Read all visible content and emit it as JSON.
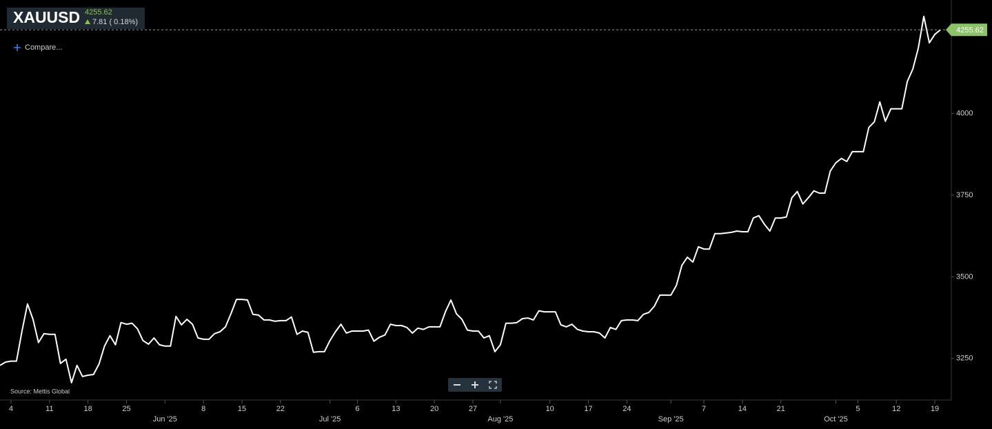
{
  "chart_data": {
    "type": "line",
    "title": "XAUUSD",
    "last_price": 4255.62,
    "change": "7.81 ( 0.18%)",
    "compare": "Compare...",
    "source": "Source: Mettis Global",
    "color": "#ffffff",
    "x": [
      "2025-05-02",
      "2025-05-03",
      "2025-05-04",
      "2025-05-05",
      "2025-05-06",
      "2025-05-07",
      "2025-05-08",
      "2025-05-09",
      "2025-05-10",
      "2025-05-11",
      "2025-05-12",
      "2025-05-13",
      "2025-05-14",
      "2025-05-15",
      "2025-05-16",
      "2025-05-17",
      "2025-05-18",
      "2025-05-19",
      "2025-05-20",
      "2025-05-21",
      "2025-05-22",
      "2025-05-23",
      "2025-05-24",
      "2025-05-25",
      "2025-05-26",
      "2025-05-27",
      "2025-05-28",
      "2025-05-29",
      "2025-05-30",
      "2025-05-31",
      "2025-06-01",
      "2025-06-02",
      "2025-06-03",
      "2025-06-04",
      "2025-06-05",
      "2025-06-06",
      "2025-06-07",
      "2025-06-08",
      "2025-06-09",
      "2025-06-10",
      "2025-06-11",
      "2025-06-12",
      "2025-06-13",
      "2025-06-14",
      "2025-06-15",
      "2025-06-16",
      "2025-06-17",
      "2025-06-18",
      "2025-06-19",
      "2025-06-20",
      "2025-06-21",
      "2025-06-22",
      "2025-06-23",
      "2025-06-24",
      "2025-06-25",
      "2025-06-26",
      "2025-06-27",
      "2025-06-28",
      "2025-06-29",
      "2025-06-30",
      "2025-07-01",
      "2025-07-02",
      "2025-07-03",
      "2025-07-04",
      "2025-07-05",
      "2025-07-06",
      "2025-07-07",
      "2025-07-08",
      "2025-07-09",
      "2025-07-10",
      "2025-07-11",
      "2025-07-12",
      "2025-07-13",
      "2025-07-14",
      "2025-07-15",
      "2025-07-16",
      "2025-07-17",
      "2025-07-18",
      "2025-07-19",
      "2025-07-20",
      "2025-07-21",
      "2025-07-22",
      "2025-07-23",
      "2025-07-24",
      "2025-07-25",
      "2025-07-26",
      "2025-07-27",
      "2025-07-28",
      "2025-07-29",
      "2025-07-30",
      "2025-07-31",
      "2025-08-01",
      "2025-08-02",
      "2025-08-03",
      "2025-08-04",
      "2025-08-05",
      "2025-08-06",
      "2025-08-07",
      "2025-08-08",
      "2025-08-09",
      "2025-08-10",
      "2025-08-11",
      "2025-08-12",
      "2025-08-13",
      "2025-08-14",
      "2025-08-15",
      "2025-08-16",
      "2025-08-17",
      "2025-08-18",
      "2025-08-19",
      "2025-08-20",
      "2025-08-21",
      "2025-08-22",
      "2025-08-23",
      "2025-08-24",
      "2025-08-25",
      "2025-08-26",
      "2025-08-27",
      "2025-08-28",
      "2025-08-29",
      "2025-08-30",
      "2025-08-31",
      "2025-09-01",
      "2025-09-02",
      "2025-09-03",
      "2025-09-04",
      "2025-09-05",
      "2025-09-06",
      "2025-09-07",
      "2025-09-08",
      "2025-09-09",
      "2025-09-10",
      "2025-09-11",
      "2025-09-12",
      "2025-09-13",
      "2025-09-14",
      "2025-09-15",
      "2025-09-16",
      "2025-09-17",
      "2025-09-18",
      "2025-09-19",
      "2025-09-20",
      "2025-09-21",
      "2025-09-22",
      "2025-09-23",
      "2025-09-24",
      "2025-09-25",
      "2025-09-26",
      "2025-09-27",
      "2025-09-28",
      "2025-09-29",
      "2025-09-30",
      "2025-10-01",
      "2025-10-02",
      "2025-10-03",
      "2025-10-04",
      "2025-10-05",
      "2025-10-06",
      "2025-10-07",
      "2025-10-08",
      "2025-10-09",
      "2025-10-10",
      "2025-10-11",
      "2025-10-12",
      "2025-10-13",
      "2025-10-14",
      "2025-10-15",
      "2025-10-16",
      "2025-10-17",
      "2025-10-18",
      "2025-10-19",
      "2025-10-20"
    ],
    "values": [
      3229,
      3239,
      3242,
      3242,
      3334,
      3417,
      3370,
      3299,
      3326,
      3324,
      3324,
      3235,
      3248,
      3176,
      3229,
      3195,
      3199,
      3201,
      3233,
      3288,
      3320,
      3292,
      3360,
      3355,
      3358,
      3341,
      3305,
      3294,
      3313,
      3292,
      3288,
      3288,
      3379,
      3353,
      3370,
      3355,
      3313,
      3309,
      3309,
      3326,
      3332,
      3347,
      3387,
      3431,
      3431,
      3429,
      3385,
      3383,
      3368,
      3368,
      3364,
      3366,
      3366,
      3377,
      3324,
      3334,
      3330,
      3269,
      3271,
      3271,
      3305,
      3332,
      3355,
      3328,
      3334,
      3334,
      3334,
      3337,
      3303,
      3315,
      3322,
      3355,
      3351,
      3351,
      3345,
      3328,
      3343,
      3339,
      3347,
      3347,
      3347,
      3393,
      3429,
      3387,
      3370,
      3337,
      3334,
      3334,
      3313,
      3320,
      3271,
      3292,
      3358,
      3358,
      3360,
      3372,
      3374,
      3368,
      3396,
      3393,
      3393,
      3393,
      3353,
      3347,
      3355,
      3339,
      3334,
      3332,
      3332,
      3328,
      3313,
      3345,
      3339,
      3366,
      3368,
      3368,
      3366,
      3385,
      3391,
      3410,
      3444,
      3444,
      3444,
      3474,
      3535,
      3560,
      3545,
      3592,
      3585,
      3585,
      3632,
      3632,
      3634,
      3636,
      3640,
      3638,
      3638,
      3680,
      3687,
      3661,
      3640,
      3680,
      3680,
      3683,
      3742,
      3761,
      3723,
      3742,
      3763,
      3756,
      3756,
      3824,
      3849,
      3862,
      3853,
      3883,
      3883,
      3883,
      3957,
      3974,
      4035,
      3976,
      4014,
      4014,
      4014,
      4098,
      4136,
      4200,
      4297,
      4216,
      4242,
      4255.62
    ],
    "xlim": [
      "2025-05-02",
      "2025-10-22"
    ],
    "xticks": [
      {
        "value": "2025-05-04",
        "label": "4"
      },
      {
        "value": "2025-05-11",
        "label": "11"
      },
      {
        "value": "2025-05-18",
        "label": "18"
      },
      {
        "value": "2025-05-25",
        "label": "25"
      },
      {
        "value": "2025-06-01",
        "label": "Jun '25"
      },
      {
        "value": "2025-06-08",
        "label": "8"
      },
      {
        "value": "2025-06-15",
        "label": "15"
      },
      {
        "value": "2025-06-22",
        "label": "22"
      },
      {
        "value": "2025-07-01",
        "label": "Jul '25"
      },
      {
        "value": "2025-07-06",
        "label": "6"
      },
      {
        "value": "2025-07-13",
        "label": "13"
      },
      {
        "value": "2025-07-20",
        "label": "20"
      },
      {
        "value": "2025-07-27",
        "label": "27"
      },
      {
        "value": "2025-08-01",
        "label": "Aug '25"
      },
      {
        "value": "2025-08-10",
        "label": "10"
      },
      {
        "value": "2025-08-17",
        "label": "17"
      },
      {
        "value": "2025-08-24",
        "label": "24"
      },
      {
        "value": "2025-09-01",
        "label": "Sep '25"
      },
      {
        "value": "2025-09-07",
        "label": "7"
      },
      {
        "value": "2025-09-14",
        "label": "14"
      },
      {
        "value": "2025-09-21",
        "label": "21"
      },
      {
        "value": "2025-10-01",
        "label": "Oct '25"
      },
      {
        "value": "2025-10-05",
        "label": "5"
      },
      {
        "value": "2025-10-12",
        "label": "12"
      },
      {
        "value": "2025-10-19",
        "label": "19"
      }
    ],
    "ylim": [
      3123,
      4347
    ],
    "yticks": [
      3250,
      3500,
      3750,
      4000
    ],
    "grid": false
  }
}
